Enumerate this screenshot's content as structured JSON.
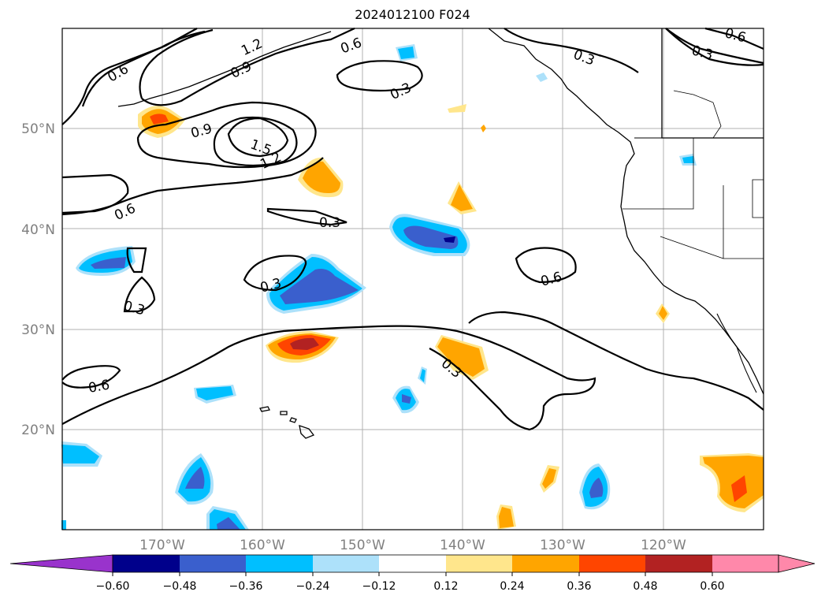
{
  "title": "2024012100 F024",
  "map": {
    "lon_range": [
      -180,
      -110
    ],
    "lat_range": [
      10,
      60
    ],
    "lat_ticks": [
      "20°N",
      "30°N",
      "40°N",
      "50°N"
    ],
    "lon_ticks": [
      "170°W",
      "160°W",
      "150°W",
      "140°W",
      "130°W",
      "120°W"
    ],
    "contour_labels": [
      "0.6",
      "1.2",
      "0.9",
      "0.6",
      "0.3",
      "0.3",
      "0.6",
      "0.9",
      "1.5",
      "1.2",
      "0.6",
      "0.3",
      "0.3",
      "0.3",
      "0.6",
      "0.6",
      "0.3"
    ],
    "colors": {
      "under": "#9933cc",
      "n060": "#00008b",
      "n048": "#3a5fcd",
      "n036": "#00bfff",
      "n024": "#ade1fa",
      "zero": "#ffffff",
      "p012": "#ffe68c",
      "p024": "#ffa500",
      "p036": "#ff4500",
      "p048": "#b22222",
      "over": "#ff88aa"
    }
  },
  "colorbar": {
    "ticks": [
      "−0.60",
      "−0.48",
      "−0.36",
      "−0.24",
      "−0.12",
      "0.12",
      "0.24",
      "0.36",
      "0.48",
      "0.60"
    ]
  }
}
